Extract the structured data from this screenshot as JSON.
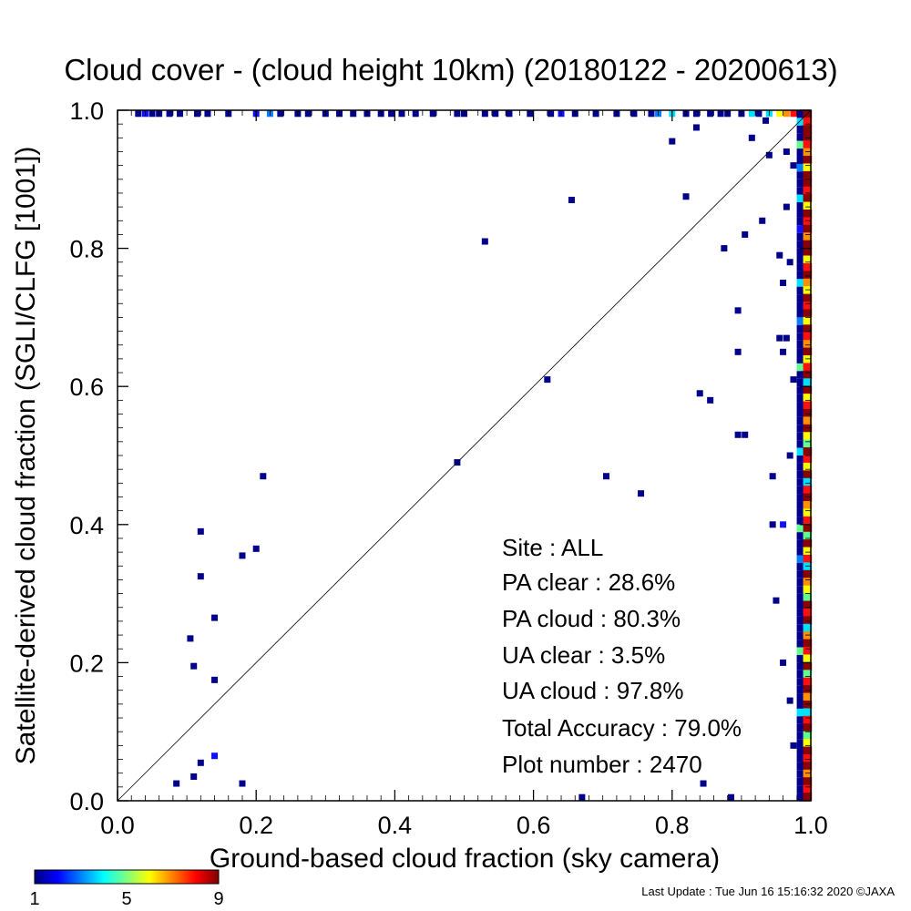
{
  "chart_data": {
    "type": "scatter",
    "title": "Cloud cover - (cloud height 10km)  (20180122 - 20200613)",
    "xlabel": "Ground-based cloud fraction (sky camera)",
    "ylabel": "Satellite-derived cloud fraction (SGLI/CLFG [1001])",
    "xlim": [
      0.0,
      1.0
    ],
    "ylim": [
      0.0,
      1.0
    ],
    "x_ticks": [
      "0.0",
      "0.2",
      "0.4",
      "0.6",
      "0.8",
      "1.0"
    ],
    "y_ticks": [
      "0.0",
      "0.2",
      "0.4",
      "0.6",
      "0.8",
      "1.0"
    ],
    "reference_line": "y = x",
    "grid": false,
    "stats": {
      "site": "Site : ALL",
      "pa_clear": "PA clear :  28.6%",
      "pa_cloud": "PA cloud :  80.3%",
      "ua_clear": "UA clear :   3.5%",
      "ua_cloud": "UA cloud :  97.8%",
      "total_accuracy": "Total Accuracy :  79.0%",
      "plot_number": "Plot number :      2470"
    },
    "colorbar": {
      "min_label": "1",
      "mid_label": "5",
      "max_label": "9",
      "colors": [
        "#00007f",
        "#0000ff",
        "#007fff",
        "#00ffff",
        "#7fff7f",
        "#ffff00",
        "#ff7f00",
        "#ff0000",
        "#7f0000"
      ]
    },
    "point_colors": {
      "navy": "#00008b",
      "blue": "#1010ff",
      "skyblue": "#0080ff",
      "cyan": "#00e0ff",
      "green": "#60ff90",
      "yellow": "#ffff00",
      "orange": "#ff9000",
      "red": "#ff1010",
      "darkred": "#8b0000"
    },
    "points": [
      {
        "x": 0.085,
        "y": 0.025,
        "c": "navy"
      },
      {
        "x": 0.11,
        "y": 0.035,
        "c": "navy"
      },
      {
        "x": 0.12,
        "y": 0.055,
        "c": "navy"
      },
      {
        "x": 0.14,
        "y": 0.065,
        "c": "blue"
      },
      {
        "x": 0.18,
        "y": 0.025,
        "c": "navy"
      },
      {
        "x": 0.105,
        "y": 0.235,
        "c": "navy"
      },
      {
        "x": 0.11,
        "y": 0.195,
        "c": "navy"
      },
      {
        "x": 0.14,
        "y": 0.175,
        "c": "navy"
      },
      {
        "x": 0.14,
        "y": 0.265,
        "c": "navy"
      },
      {
        "x": 0.12,
        "y": 0.325,
        "c": "navy"
      },
      {
        "x": 0.12,
        "y": 0.39,
        "c": "navy"
      },
      {
        "x": 0.18,
        "y": 0.355,
        "c": "navy"
      },
      {
        "x": 0.2,
        "y": 0.365,
        "c": "navy"
      },
      {
        "x": 0.21,
        "y": 0.47,
        "c": "navy"
      },
      {
        "x": 0.49,
        "y": 0.49,
        "c": "navy"
      },
      {
        "x": 0.53,
        "y": 0.81,
        "c": "navy"
      },
      {
        "x": 0.62,
        "y": 0.61,
        "c": "navy"
      },
      {
        "x": 0.655,
        "y": 0.87,
        "c": "navy"
      },
      {
        "x": 0.67,
        "y": 0.005,
        "c": "navy"
      },
      {
        "x": 0.705,
        "y": 0.47,
        "c": "navy"
      },
      {
        "x": 0.755,
        "y": 0.445,
        "c": "navy"
      },
      {
        "x": 0.8,
        "y": 0.955,
        "c": "navy"
      },
      {
        "x": 0.82,
        "y": 0.875,
        "c": "navy"
      },
      {
        "x": 0.835,
        "y": 0.975,
        "c": "navy"
      },
      {
        "x": 0.84,
        "y": 0.59,
        "c": "navy"
      },
      {
        "x": 0.845,
        "y": 0.025,
        "c": "navy"
      },
      {
        "x": 0.855,
        "y": 0.58,
        "c": "navy"
      },
      {
        "x": 0.875,
        "y": 0.8,
        "c": "navy"
      },
      {
        "x": 0.885,
        "y": 0.005,
        "c": "navy"
      },
      {
        "x": 0.895,
        "y": 0.71,
        "c": "navy"
      },
      {
        "x": 0.895,
        "y": 0.65,
        "c": "navy"
      },
      {
        "x": 0.895,
        "y": 0.53,
        "c": "navy"
      },
      {
        "x": 0.905,
        "y": 0.82,
        "c": "navy"
      },
      {
        "x": 0.905,
        "y": 0.53,
        "c": "navy"
      },
      {
        "x": 0.915,
        "y": 0.96,
        "c": "navy"
      },
      {
        "x": 0.93,
        "y": 0.84,
        "c": "navy"
      },
      {
        "x": 0.935,
        "y": 0.985,
        "c": "navy"
      },
      {
        "x": 0.94,
        "y": 0.935,
        "c": "navy"
      },
      {
        "x": 0.945,
        "y": 0.47,
        "c": "navy"
      },
      {
        "x": 0.945,
        "y": 0.4,
        "c": "navy"
      },
      {
        "x": 0.95,
        "y": 0.29,
        "c": "navy"
      },
      {
        "x": 0.955,
        "y": 0.79,
        "c": "navy"
      },
      {
        "x": 0.955,
        "y": 0.67,
        "c": "navy"
      },
      {
        "x": 0.96,
        "y": 0.75,
        "c": "navy"
      },
      {
        "x": 0.96,
        "y": 0.65,
        "c": "navy"
      },
      {
        "x": 0.96,
        "y": 0.2,
        "c": "navy"
      },
      {
        "x": 0.96,
        "y": 0.4,
        "c": "blue"
      },
      {
        "x": 0.965,
        "y": 0.94,
        "c": "navy"
      },
      {
        "x": 0.965,
        "y": 0.67,
        "c": "navy"
      },
      {
        "x": 0.965,
        "y": 0.86,
        "c": "navy"
      },
      {
        "x": 0.97,
        "y": 0.78,
        "c": "navy"
      },
      {
        "x": 0.97,
        "y": 0.5,
        "c": "navy"
      },
      {
        "x": 0.97,
        "y": 0.145,
        "c": "navy"
      },
      {
        "x": 0.975,
        "y": 0.92,
        "c": "navy"
      },
      {
        "x": 0.975,
        "y": 0.61,
        "c": "navy"
      },
      {
        "x": 0.975,
        "y": 0.08,
        "c": "navy"
      }
    ],
    "top_row_points": [
      {
        "x": 0.03,
        "c": "navy"
      },
      {
        "x": 0.04,
        "c": "blue"
      },
      {
        "x": 0.05,
        "c": "navy"
      },
      {
        "x": 0.06,
        "c": "navy"
      },
      {
        "x": 0.075,
        "c": "navy"
      },
      {
        "x": 0.09,
        "c": "navy"
      },
      {
        "x": 0.115,
        "c": "navy"
      },
      {
        "x": 0.13,
        "c": "navy"
      },
      {
        "x": 0.16,
        "c": "navy"
      },
      {
        "x": 0.2,
        "c": "blue"
      },
      {
        "x": 0.22,
        "c": "skyblue"
      },
      {
        "x": 0.235,
        "c": "navy"
      },
      {
        "x": 0.26,
        "c": "navy"
      },
      {
        "x": 0.275,
        "c": "navy"
      },
      {
        "x": 0.3,
        "c": "navy"
      },
      {
        "x": 0.32,
        "c": "navy"
      },
      {
        "x": 0.34,
        "c": "navy"
      },
      {
        "x": 0.36,
        "c": "navy"
      },
      {
        "x": 0.38,
        "c": "navy"
      },
      {
        "x": 0.395,
        "c": "navy"
      },
      {
        "x": 0.41,
        "c": "navy"
      },
      {
        "x": 0.43,
        "c": "navy"
      },
      {
        "x": 0.455,
        "c": "navy"
      },
      {
        "x": 0.49,
        "c": "navy"
      },
      {
        "x": 0.5,
        "c": "navy"
      },
      {
        "x": 0.53,
        "c": "navy"
      },
      {
        "x": 0.545,
        "c": "navy"
      },
      {
        "x": 0.565,
        "c": "navy"
      },
      {
        "x": 0.595,
        "c": "navy"
      },
      {
        "x": 0.625,
        "c": "navy"
      },
      {
        "x": 0.64,
        "c": "blue"
      },
      {
        "x": 0.66,
        "c": "navy"
      },
      {
        "x": 0.69,
        "c": "navy"
      },
      {
        "x": 0.72,
        "c": "navy"
      },
      {
        "x": 0.745,
        "c": "navy"
      },
      {
        "x": 0.77,
        "c": "navy"
      },
      {
        "x": 0.78,
        "c": "skyblue"
      },
      {
        "x": 0.8,
        "c": "cyan"
      },
      {
        "x": 0.82,
        "c": "navy"
      },
      {
        "x": 0.835,
        "c": "navy"
      },
      {
        "x": 0.855,
        "c": "navy"
      },
      {
        "x": 0.87,
        "c": "navy"
      },
      {
        "x": 0.88,
        "c": "navy"
      },
      {
        "x": 0.9,
        "c": "navy"
      },
      {
        "x": 0.915,
        "c": "cyan"
      },
      {
        "x": 0.925,
        "c": "navy"
      },
      {
        "x": 0.94,
        "c": "cyan"
      },
      {
        "x": 0.955,
        "c": "yellow"
      },
      {
        "x": 0.965,
        "c": "orange"
      },
      {
        "x": 0.975,
        "c": "red"
      }
    ],
    "right_column_colors": [
      "darkred",
      "red",
      "darkred",
      "darkred",
      "red",
      "orange",
      "darkred",
      "yellow",
      "darkred",
      "darkred",
      "red",
      "darkred",
      "yellow",
      "darkred",
      "red",
      "darkred",
      "orange",
      "darkred",
      "darkred",
      "yellow",
      "red",
      "darkred",
      "orange",
      "yellow",
      "darkred",
      "red",
      "darkred",
      "yellow",
      "darkred",
      "red",
      "orange",
      "darkred",
      "yellow",
      "red",
      "darkred",
      "cyan",
      "darkred",
      "yellow",
      "red",
      "darkred",
      "orange",
      "darkred",
      "yellow",
      "green",
      "darkred",
      "red",
      "yellow",
      "darkred",
      "cyan",
      "red",
      "darkred",
      "orange",
      "yellow",
      "red",
      "darkred",
      "green",
      "darkred",
      "yellow",
      "red",
      "cyan",
      "darkred",
      "orange",
      "yellow",
      "green",
      "darkred",
      "red",
      "darkred",
      "cyan",
      "orange",
      "darkred",
      "red",
      "yellow",
      "darkred",
      "green",
      "red",
      "darkred",
      "orange",
      "darkred",
      "cyan",
      "red",
      "darkred",
      "green",
      "yellow",
      "darkred",
      "red",
      "darkred",
      "orange",
      "darkred",
      "red",
      "darkred"
    ],
    "near_right_column_colors": [
      "navy",
      "cyan",
      "navy",
      "navy",
      "green",
      "navy",
      "navy",
      "skyblue",
      "navy",
      "navy",
      "navy",
      "cyan",
      "navy",
      "navy",
      "navy",
      "blue",
      "navy",
      "navy",
      "navy",
      "navy",
      "navy",
      "navy",
      "cyan",
      "navy",
      "navy",
      "navy",
      "navy",
      "skyblue",
      "navy",
      "navy",
      "navy",
      "navy",
      "navy",
      "green",
      "navy",
      "navy",
      "navy",
      "navy",
      "navy",
      "navy",
      "navy",
      "navy",
      "navy",
      "navy",
      "cyan",
      "navy",
      "navy",
      "navy",
      "navy",
      "navy",
      "navy",
      "navy",
      "navy",
      "navy",
      "green",
      "navy",
      "navy",
      "navy",
      "skyblue",
      "navy",
      "navy",
      "navy",
      "navy",
      "navy",
      "navy",
      "navy",
      "navy",
      "navy",
      "navy",
      "navy",
      "green",
      "navy",
      "navy",
      "navy",
      "navy",
      "navy",
      "navy",
      "navy",
      "cyan",
      "navy",
      "navy",
      "navy",
      "navy",
      "navy",
      "navy",
      "navy",
      "navy",
      "navy",
      "navy",
      "navy"
    ]
  },
  "footer": {
    "last_update": "Last Update : Tue Jun 16 15:16:32 2020  ©JAXA"
  }
}
